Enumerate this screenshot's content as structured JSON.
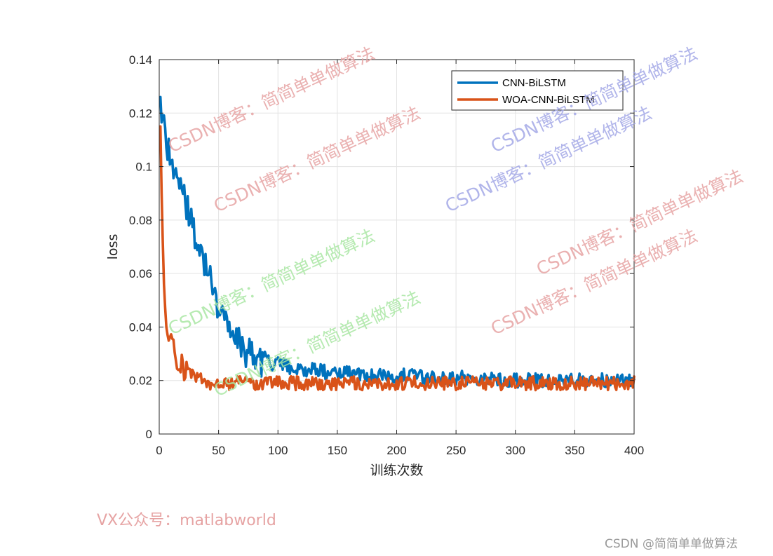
{
  "chart_data": {
    "type": "line",
    "title": "",
    "xlabel": "训练次数",
    "ylabel": "loss",
    "xlim": [
      0,
      400
    ],
    "ylim": [
      0,
      0.14
    ],
    "xticks": [
      0,
      50,
      100,
      150,
      200,
      250,
      300,
      350,
      400
    ],
    "yticks": [
      0,
      0.02,
      0.04,
      0.06,
      0.08,
      0.1,
      0.12,
      0.14
    ],
    "xtick_labels": [
      "0",
      "50",
      "100",
      "150",
      "200",
      "250",
      "300",
      "350",
      "400"
    ],
    "ytick_labels": [
      "0",
      "0.02",
      "0.04",
      "0.06",
      "0.08",
      "0.1",
      "0.12",
      "0.14"
    ],
    "grid": true,
    "legend_position": "top-right",
    "series": [
      {
        "name": "CNN-BiLSTM",
        "color": "#0072BD",
        "x": [
          1,
          5,
          10,
          15,
          20,
          25,
          30,
          35,
          40,
          45,
          50,
          55,
          60,
          65,
          70,
          75,
          80,
          90,
          100,
          110,
          120,
          130,
          140,
          150,
          175,
          200,
          225,
          250,
          275,
          300,
          325,
          350,
          375,
          400
        ],
        "y": [
          0.126,
          0.112,
          0.103,
          0.094,
          0.089,
          0.083,
          0.075,
          0.069,
          0.062,
          0.055,
          0.048,
          0.043,
          0.039,
          0.035,
          0.032,
          0.03,
          0.028,
          0.027,
          0.026,
          0.025,
          0.024,
          0.024,
          0.023,
          0.023,
          0.022,
          0.022,
          0.021,
          0.021,
          0.021,
          0.02,
          0.02,
          0.02,
          0.02,
          0.02
        ]
      },
      {
        "name": "WOA-CNN-BiLSTM",
        "color": "#D95319",
        "x": [
          1,
          2,
          3,
          4,
          5,
          7,
          10,
          15,
          20,
          25,
          30,
          35,
          40,
          50,
          60,
          80,
          100,
          150,
          200,
          250,
          300,
          350,
          400
        ],
        "y": [
          0.115,
          0.09,
          0.068,
          0.055,
          0.046,
          0.039,
          0.033,
          0.028,
          0.025,
          0.023,
          0.021,
          0.02,
          0.019,
          0.019,
          0.019,
          0.019,
          0.019,
          0.019,
          0.019,
          0.019,
          0.019,
          0.019,
          0.019
        ]
      }
    ]
  },
  "watermarks": [
    {
      "text": "CSDN博客：简简单单做算法",
      "color": "#e6a3a3"
    },
    {
      "text": "CSDN博客：简简单单做算法",
      "color": "#e6a3a3"
    },
    {
      "text": "CSDN博客：简简单单做算法",
      "color": "#a9e6a3"
    },
    {
      "text": "CSDN博客：简简单单做算法",
      "color": "#a9e6a3"
    },
    {
      "text": "CSDN博客：简简单单做算法",
      "color": "#a3a8e6"
    },
    {
      "text": "CSDN博客：简简单单做算法",
      "color": "#a3a8e6"
    },
    {
      "text": "CSDN博客：简简单单做算法",
      "color": "#e6a3a3"
    },
    {
      "text": "CSDN博客：简简单单做算法",
      "color": "#e6a3a3"
    }
  ],
  "footer_left": "VX公众号：matlabworld",
  "footer_right": "CSDN @简简单单做算法"
}
